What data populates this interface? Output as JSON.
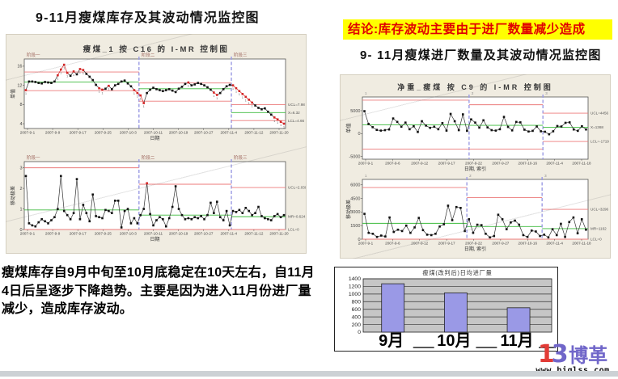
{
  "page": {
    "title_left": "9-11月瘦煤库存及其波动情况监控图",
    "conclusion": "结论:库存波动主要由于进厂数量减少造成",
    "title_right": "9- 11月瘦煤进厂数量及其波动情况监控图",
    "paragraph": "瘦煤库存自9月中旬至10月底稳定在10天左右，自11月4日后呈逐步下降趋势。主要是因为进入11月份进厂量减少，造成库存波动。",
    "logo": {
      "mark_left": "1",
      "mark_right": "3",
      "name": "博革",
      "url": "www.biglss.com"
    }
  },
  "chart_data": [
    {
      "id": "stock-individuals",
      "type": "line",
      "subtype": "control-individuals",
      "title": "瘦煤_1 按 C16 的 I-MR 控制图",
      "ylabel": "单值",
      "xlabel": "日期",
      "ylim": [
        3,
        17.5
      ],
      "yticks": [
        16,
        12,
        8,
        4
      ],
      "xticklabels": [
        "2007-9-1",
        "2007-9-9",
        "2007-9-17",
        "2007-9-25",
        "2007-10-3",
        "2007-10-11",
        "2007-10-19",
        "2007-10-27",
        "2007-11-4",
        "2007-11-12",
        "2007-11-20"
      ],
      "right_labels": [
        "UCL=7.98",
        "X=6.32",
        "LCL=4.66"
      ],
      "phase_label_color": "#a06a60",
      "phase_font": 5.5,
      "flags": true,
      "phases": [
        {
          "label": "阶段一",
          "ucl": 14.8,
          "center": 12.7,
          "lcl": 10.9,
          "values": [
            11.0,
            12.8,
            12.8,
            12.7,
            12.5,
            12.4,
            12.7,
            12.6,
            12.5,
            12.8,
            14.1,
            15.3,
            16.3,
            14.6,
            14.0,
            14.9,
            14.3,
            15.4,
            15.2,
            14.4,
            13.8,
            13.1,
            12.1,
            11.4,
            11.1,
            11.3,
            11.9,
            11.2,
            12.0,
            12.3,
            12.8,
            13.0,
            12.4,
            11.8,
            11.0,
            10.4
          ],
          "red": [
            0,
            10,
            11,
            12,
            13,
            15,
            17,
            18,
            23,
            24,
            26,
            34,
            35
          ]
        },
        {
          "label": "阶段二",
          "ucl": 12.5,
          "center": 11.3,
          "lcl": 8.7,
          "values": [
            9.9,
            8.3,
            10.4,
            11.1,
            11.5,
            11.2,
            11.0,
            10.8,
            11.0,
            11.2,
            10.9,
            10.6,
            11.3,
            11.7,
            12.3,
            12.6,
            12.0,
            12.2,
            12.5,
            12.3,
            12.0,
            11.6,
            11.1,
            10.5,
            10.0,
            10.4,
            11.2,
            11.8,
            12.1
          ],
          "red": [
            0,
            1,
            15,
            23,
            24
          ]
        },
        {
          "label": "阶段三",
          "ucl": 7.98,
          "center": 6.32,
          "lcl": 4.66,
          "values": [
            12.0,
            11.4,
            10.8,
            10.2,
            9.6,
            9.0,
            8.4,
            7.8,
            7.3,
            7.0,
            7.2,
            6.5,
            5.9,
            5.3,
            4.9,
            4.4,
            4.0
          ],
          "red": [
            0,
            1,
            2,
            3,
            4,
            5,
            6,
            13,
            14,
            15,
            16
          ]
        }
      ]
    },
    {
      "id": "stock-moving-range",
      "type": "line",
      "subtype": "control-moving-range",
      "ylabel": "移动极差",
      "xlabel": "日期",
      "ylim": [
        0,
        3.3
      ],
      "yticks": [
        3,
        2,
        1,
        0
      ],
      "xticklabels": [
        "2007-9-1",
        "2007-9-9",
        "2007-9-17",
        "2007-9-25",
        "2007-10-3",
        "2007-10-11",
        "2007-10-19",
        "2007-10-27",
        "2007-11-4",
        "2007-11-12",
        "2007-11-20"
      ],
      "right_labels": [
        "UCL=2.039",
        "MR=0.624",
        "LCL=0"
      ],
      "phase_label_color": "#a06a60",
      "phase_font": 5.5,
      "phases": [
        {
          "label": "阶段一",
          "ucl": 3.0,
          "center": 0.95,
          "lcl": 0,
          "values": [
            2.6,
            0.3,
            0.2,
            0.15,
            0.35,
            0.5,
            0.4,
            0.3,
            0.45,
            0.6,
            1.0,
            2.6,
            0.9,
            0.7,
            0.5,
            0.8,
            2.45,
            0.5,
            1.2,
            0.8,
            0.4,
            1.7,
            0.65,
            0.6,
            0.55,
            0.95,
            0.9,
            0.8,
            1.4,
            1.4,
            0.1,
            0.9,
            1.0,
            0.3,
            0.55,
            0.3
          ],
          "red": []
        },
        {
          "label": "阶段二",
          "ucl": 2.2,
          "center": 0.7,
          "lcl": 0,
          "values": [
            0.7,
            1.0,
            2.25,
            0.75,
            0.2,
            0.45,
            0.6,
            0.5,
            0.15,
            0.55,
            1.1,
            2.1,
            1.0,
            0.7,
            0.5,
            0.55,
            0.5,
            0.6,
            0.55,
            0.65,
            0.5,
            0.7,
            1.3,
            0.8,
            1.35,
            0.6,
            0.45,
            0.9,
            0.2
          ],
          "red": [
            2
          ]
        },
        {
          "label": "阶段三",
          "ucl": 2.039,
          "center": 0.624,
          "lcl": 0,
          "values": [
            0.9,
            0.85,
            0.95,
            0.8,
            1.05,
            0.9,
            0.7,
            0.8,
            1.1,
            0.65,
            0.55,
            0.5,
            0.45,
            0.65,
            0.75,
            0.6,
            0.7
          ],
          "red": []
        }
      ]
    },
    {
      "id": "arrival-individuals",
      "type": "line",
      "subtype": "control-individuals",
      "title": "净重_瘦煤 按 C9 的 I-MR 控制图",
      "ylabel": "单值",
      "xlabel": "日期, 索引",
      "ylim": [
        -5600,
        8000
      ],
      "yticks": [
        5000,
        0,
        -5000
      ],
      "xticklabels": [
        "2007-9-1",
        "2007-9-6",
        "2007-9-12",
        "2007-9-17",
        "2007-9-22",
        "2007-9-27",
        "2007-10-16",
        "2007-11-4",
        "2007-11-18"
      ],
      "right_labels": [
        "UCL=4456",
        "X=1368",
        "LCL=-1719"
      ],
      "phase_label_color": "#888888",
      "phase_font": 4.5,
      "phases": [
        {
          "label": "1",
          "ucl": 7300,
          "center": 1900,
          "lcl": -3400,
          "values": [
            4900,
            2100,
            1400,
            800,
            650,
            750,
            900,
            3300,
            2550,
            1500,
            2400,
            950,
            1600,
            350,
            2700,
            1750,
            1250,
            1500,
            950,
            2300,
            650,
            4300,
            2700,
            750,
            4200,
            600
          ],
          "red": []
        },
        {
          "label": "2",
          "ucl": 6300,
          "center": 1800,
          "lcl": -3400,
          "values": [
            3100,
            2400,
            1300,
            2900,
            1350,
            750,
            650,
            950,
            3650,
            1450,
            700,
            2550,
            2450,
            850,
            450,
            600,
            1550,
            500
          ],
          "red": []
        },
        {
          "label": "3",
          "ucl": 4456,
          "center": 1368,
          "lcl": -1719,
          "values": [
            400,
            -150,
            500,
            1650,
            1550,
            2350,
            2450,
            900,
            600,
            1600,
            900
          ],
          "red": []
        }
      ]
    },
    {
      "id": "arrival-moving-range",
      "type": "line",
      "subtype": "control-moving-range",
      "ylabel": "移动极差",
      "xlabel": "日期, 索引",
      "ylim": [
        0,
        6600
      ],
      "yticks": [
        6000,
        4500,
        3000,
        1500,
        0
      ],
      "xticklabels": [
        "2007-9-1",
        "2007-9-6",
        "2007-9-12",
        "2007-9-17",
        "2007-9-22",
        "2007-9-27",
        "2007-10-16",
        "2007-11-4",
        "2007-11-18"
      ],
      "right_labels": [
        "UCL=3296",
        "MR=1162",
        "LCL=0"
      ],
      "phase_label_color": "#888888",
      "phase_font": 4.5,
      "phases": [
        {
          "label": "1",
          "ucl": 5700,
          "center": 1750,
          "lcl": 0,
          "values": [
            2800,
            700,
            600,
            250,
            400,
            300,
            2400,
            800,
            1050,
            900,
            1500,
            700,
            1300,
            2350,
            1000,
            500,
            450,
            600,
            1400,
            1650,
            3700,
            2100,
            3550,
            3450,
            900
          ],
          "red": []
        },
        {
          "label": "2",
          "ucl": 4600,
          "center": 1400,
          "lcl": 0,
          "values": [
            2200,
            700,
            1600,
            1550,
            600,
            200,
            350,
            2700,
            2200,
            1100,
            1850,
            2050,
            1600,
            450,
            250,
            950,
            850,
            350
          ],
          "red": []
        },
        {
          "label": "3",
          "ucl": 3296,
          "center": 1162,
          "lcl": 0,
          "values": [
            500,
            200,
            1100,
            450,
            1700,
            250,
            1900,
            2400,
            650,
            2200,
            1050
          ],
          "red": []
        }
      ]
    },
    {
      "id": "monthly-average-bar",
      "type": "bar",
      "title": "瘦煤(改判后)日均进厂量",
      "categories": [
        "9月",
        "10月",
        "11月"
      ],
      "values": [
        1270,
        1030,
        640
      ],
      "ylim": [
        0,
        1400
      ],
      "ytick_step": 200,
      "bar_color": "#9a99e6",
      "plot_bg": "#c6c6c6"
    }
  ]
}
